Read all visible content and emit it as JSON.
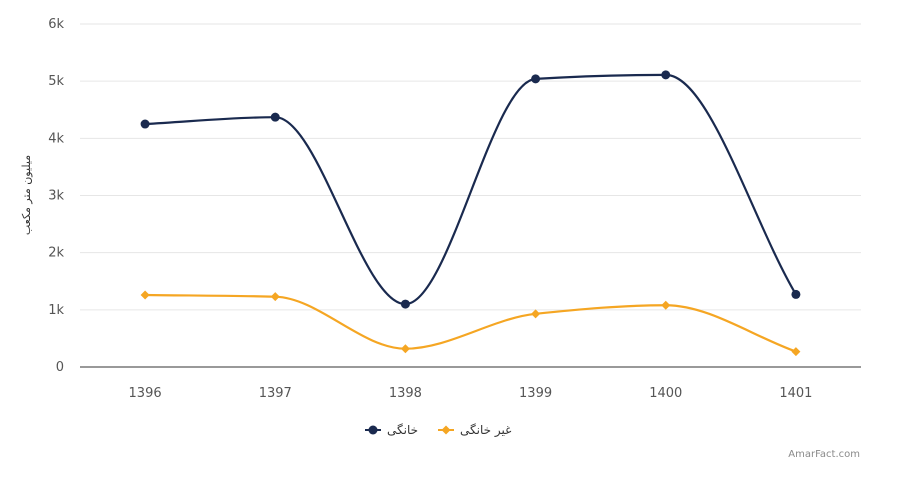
{
  "chart_data": {
    "type": "line",
    "categories": [
      "1396",
      "1397",
      "1398",
      "1399",
      "1400",
      "1401"
    ],
    "ylabel": "میلیون متر مکعب",
    "ylim": [
      0,
      6000
    ],
    "yticks": [
      "0",
      "1k",
      "2k",
      "3k",
      "4k",
      "5k",
      "6k"
    ],
    "grid": true,
    "legend": "bottom-center",
    "series": [
      {
        "name": "خانگی",
        "color": "#1a2a4f",
        "marker": "circle",
        "values": [
          4250,
          4370,
          1100,
          5040,
          5110,
          1270
        ]
      },
      {
        "name": "غیر خانگی",
        "color": "#f5a623",
        "marker": "diamond",
        "values": [
          1260,
          1230,
          320,
          930,
          1080,
          270
        ]
      }
    ]
  },
  "credit": "AmarFact.com"
}
